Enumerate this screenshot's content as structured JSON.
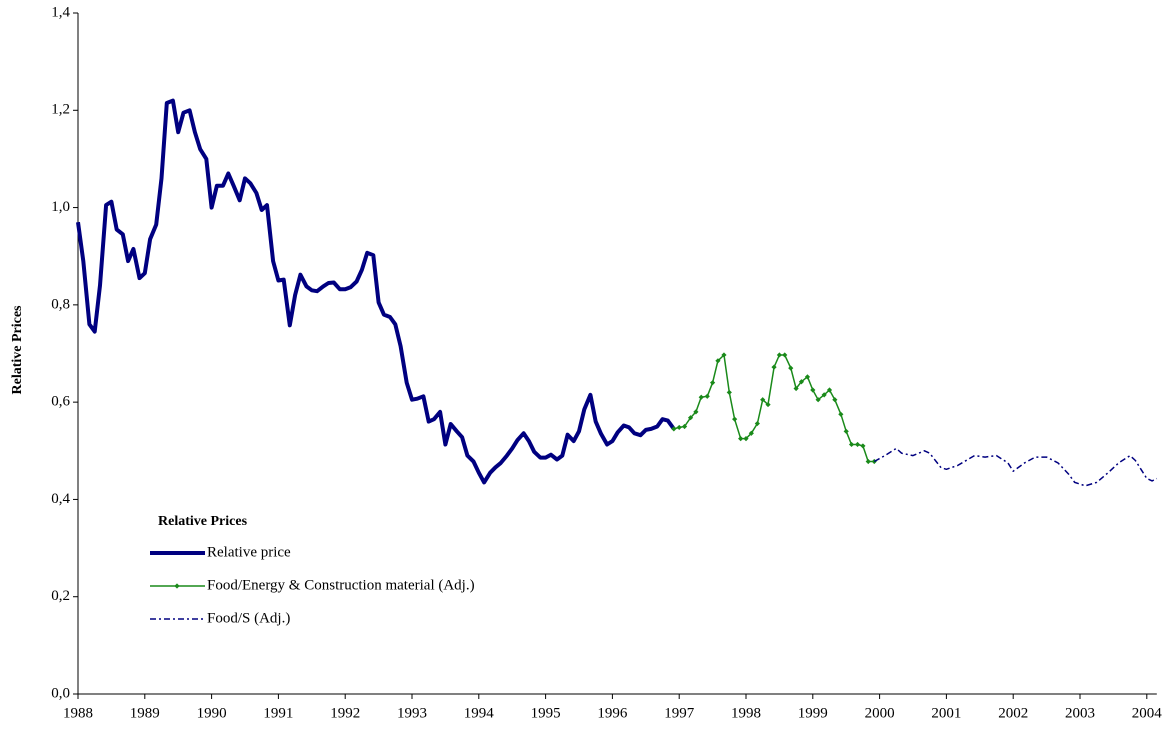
{
  "chart_data": {
    "type": "line",
    "y_label": "Relative Prices",
    "legend_title": "Relative Prices",
    "legend": "lower-left",
    "xlim": [
      1988,
      2004.15
    ],
    "xticks": [
      1988,
      1989,
      1990,
      1991,
      1992,
      1993,
      1994,
      1995,
      1996,
      1997,
      1998,
      1999,
      2000,
      2001,
      2002,
      2003,
      2004
    ],
    "ylim": [
      0,
      1.4
    ],
    "yticks": [
      {
        "value": 0,
        "label": "0,0"
      },
      {
        "value": 0.2,
        "label": "0,2"
      },
      {
        "value": 0.4,
        "label": "0,4"
      },
      {
        "value": 0.6,
        "label": "0,6"
      },
      {
        "value": 0.8,
        "label": "0,8"
      },
      {
        "value": 1.0,
        "label": "1,0"
      },
      {
        "value": 1.2,
        "label": "1,2"
      },
      {
        "value": 1.4,
        "label": "1,4"
      }
    ],
    "series": [
      {
        "name": "Relative price",
        "color": "#000080",
        "style": "solid-thick",
        "x": [
          1988.0,
          1988.08,
          1988.17,
          1988.25,
          1988.33,
          1988.42,
          1988.5,
          1988.58,
          1988.67,
          1988.75,
          1988.83,
          1988.92,
          1989.0,
          1989.08,
          1989.17,
          1989.25,
          1989.33,
          1989.42,
          1989.5,
          1989.58,
          1989.67,
          1989.75,
          1989.83,
          1989.92,
          1990.0,
          1990.08,
          1990.17,
          1990.25,
          1990.33,
          1990.42,
          1990.5,
          1990.58,
          1990.67,
          1990.75,
          1990.83,
          1990.92,
          1991.0,
          1991.08,
          1991.17,
          1991.25,
          1991.33,
          1991.42,
          1991.5,
          1991.58,
          1991.67,
          1991.75,
          1991.83,
          1991.92,
          1992.0,
          1992.08,
          1992.17,
          1992.25,
          1992.33,
          1992.42,
          1992.5,
          1992.58,
          1992.67,
          1992.75,
          1992.83,
          1992.92,
          1993.0,
          1993.08,
          1993.17,
          1993.25,
          1993.33,
          1993.42,
          1993.5,
          1993.58,
          1993.67,
          1993.75,
          1993.83,
          1993.92,
          1994.0,
          1994.08,
          1994.17,
          1994.25,
          1994.33,
          1994.42,
          1994.5,
          1994.58,
          1994.67,
          1994.75,
          1994.83,
          1994.92,
          1995.0,
          1995.08,
          1995.17,
          1995.25,
          1995.33,
          1995.42,
          1995.5,
          1995.58,
          1995.67,
          1995.75,
          1995.83,
          1995.92,
          1996.0,
          1996.08,
          1996.17,
          1996.25,
          1996.33,
          1996.42,
          1996.5,
          1996.58,
          1996.67,
          1996.75,
          1996.83,
          1996.92
        ],
        "values": [
          0.97,
          0.89,
          0.76,
          0.745,
          0.84,
          1.005,
          1.012,
          0.955,
          0.945,
          0.89,
          0.915,
          0.855,
          0.865,
          0.935,
          0.965,
          1.06,
          1.215,
          1.22,
          1.155,
          1.195,
          1.2,
          1.155,
          1.12,
          1.1,
          1.0,
          1.045,
          1.045,
          1.07,
          1.045,
          1.015,
          1.06,
          1.05,
          1.03,
          0.995,
          1.005,
          0.89,
          0.85,
          0.852,
          0.758,
          0.82,
          0.862,
          0.838,
          0.83,
          0.828,
          0.838,
          0.845,
          0.846,
          0.832,
          0.832,
          0.836,
          0.848,
          0.872,
          0.907,
          0.902,
          0.805,
          0.78,
          0.775,
          0.76,
          0.715,
          0.64,
          0.605,
          0.607,
          0.612,
          0.56,
          0.565,
          0.58,
          0.513,
          0.555,
          0.54,
          0.528,
          0.49,
          0.478,
          0.455,
          0.435,
          0.455,
          0.466,
          0.475,
          0.49,
          0.505,
          0.522,
          0.536,
          0.52,
          0.498,
          0.486,
          0.486,
          0.492,
          0.482,
          0.49,
          0.533,
          0.52,
          0.54,
          0.585,
          0.615,
          0.56,
          0.535,
          0.513,
          0.52,
          0.538,
          0.552,
          0.548,
          0.536,
          0.532,
          0.543,
          0.545,
          0.55,
          0.565,
          0.562,
          0.545
        ]
      },
      {
        "name": "Food/Energy & Construction material (Adj.)",
        "color": "#1a8a1a",
        "style": "solid-markers",
        "x": [
          1996.92,
          1997.0,
          1997.08,
          1997.17,
          1997.25,
          1997.33,
          1997.42,
          1997.5,
          1997.58,
          1997.67,
          1997.75,
          1997.83,
          1997.92,
          1998.0,
          1998.08,
          1998.17,
          1998.25,
          1998.33,
          1998.42,
          1998.5,
          1998.58,
          1998.67,
          1998.75,
          1998.83,
          1998.92,
          1999.0,
          1999.08,
          1999.17,
          1999.25,
          1999.33,
          1999.42,
          1999.5,
          1999.58,
          1999.67,
          1999.75,
          1999.83,
          1999.92
        ],
        "values": [
          0.545,
          0.548,
          0.55,
          0.568,
          0.58,
          0.61,
          0.612,
          0.64,
          0.685,
          0.697,
          0.62,
          0.565,
          0.525,
          0.525,
          0.536,
          0.556,
          0.605,
          0.595,
          0.672,
          0.697,
          0.697,
          0.67,
          0.628,
          0.642,
          0.652,
          0.625,
          0.605,
          0.615,
          0.625,
          0.605,
          0.575,
          0.54,
          0.513,
          0.513,
          0.51,
          0.478,
          0.478
        ]
      },
      {
        "name": "Food/S (Adj.)",
        "color": "#000080",
        "style": "dash-dot",
        "x": [
          1999.92,
          2000.08,
          2000.25,
          2000.33,
          2000.5,
          2000.67,
          2000.75,
          2000.92,
          2001.0,
          2001.17,
          2001.42,
          2001.58,
          2001.75,
          2001.92,
          2002.0,
          2002.17,
          2002.33,
          2002.5,
          2002.67,
          2002.83,
          2002.92,
          2003.08,
          2003.25,
          2003.42,
          2003.58,
          2003.75,
          2003.83,
          2004.0,
          2004.08,
          2004.15
        ],
        "values": [
          0.478,
          0.49,
          0.505,
          0.495,
          0.49,
          0.5,
          0.495,
          0.465,
          0.462,
          0.47,
          0.49,
          0.487,
          0.49,
          0.475,
          0.458,
          0.475,
          0.487,
          0.487,
          0.475,
          0.452,
          0.435,
          0.428,
          0.435,
          0.455,
          0.475,
          0.49,
          0.48,
          0.443,
          0.438,
          0.443
        ]
      }
    ]
  }
}
